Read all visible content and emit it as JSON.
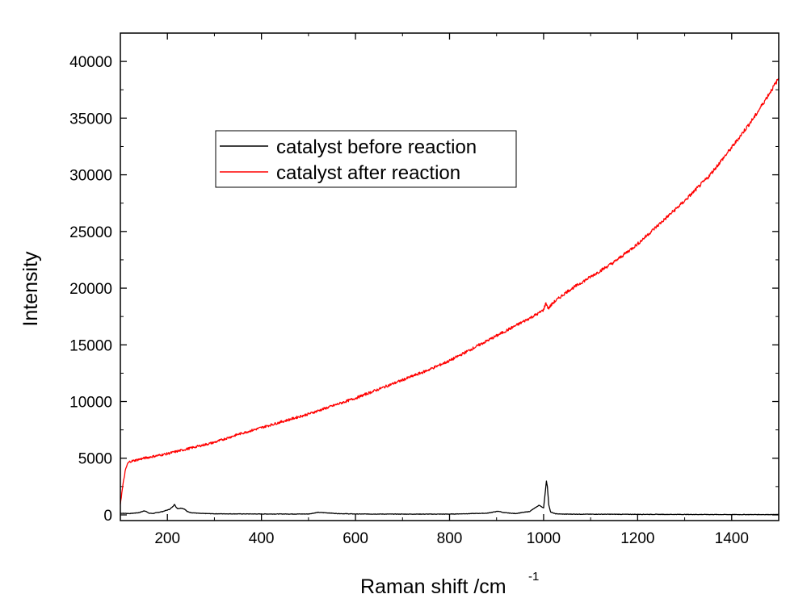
{
  "chart_data": {
    "type": "line",
    "xlabel": "Raman shift /cm",
    "xlabel_sup": "-1",
    "ylabel": "Intensity",
    "xlim": [
      100,
      1500
    ],
    "ylim": [
      -500,
      42500
    ],
    "x_ticks": [
      200,
      400,
      600,
      800,
      1000,
      1200,
      1400
    ],
    "x_tick_labels": [
      "200",
      "400",
      "600",
      "800",
      "1000",
      "1200",
      "1400"
    ],
    "y_ticks": [
      0,
      5000,
      10000,
      15000,
      20000,
      25000,
      30000,
      35000,
      40000
    ],
    "y_tick_labels": [
      "0",
      "5000",
      "10000",
      "15000",
      "20000",
      "25000",
      "30000",
      "35000",
      "40000"
    ],
    "grid": false,
    "legend_position": "upper-left",
    "colors": {
      "before": "#000000",
      "after": "#ff0000"
    },
    "series": [
      {
        "name": "catalyst before reaction",
        "color": "#000000",
        "x": [
          100,
          120,
          140,
          150,
          155,
          160,
          170,
          190,
          205,
          212,
          215,
          218,
          222,
          230,
          237,
          242,
          250,
          270,
          300,
          400,
          500,
          520,
          540,
          560,
          600,
          700,
          800,
          880,
          900,
          905,
          915,
          940,
          970,
          985,
          990,
          995,
          1000,
          1003,
          1006,
          1008,
          1011,
          1015,
          1025,
          1040,
          1100,
          1200,
          1300,
          1400,
          1500
        ],
        "y": [
          150,
          120,
          200,
          350,
          320,
          150,
          130,
          300,
          500,
          750,
          950,
          700,
          550,
          600,
          500,
          300,
          200,
          130,
          100,
          80,
          80,
          220,
          180,
          120,
          80,
          70,
          70,
          150,
          300,
          320,
          200,
          120,
          300,
          700,
          850,
          750,
          600,
          1800,
          3000,
          2500,
          900,
          250,
          100,
          70,
          60,
          50,
          40,
          30,
          30
        ]
      },
      {
        "name": "catalyst after reaction",
        "color": "#ff0000",
        "x": [
          100,
          105,
          110,
          115,
          120,
          130,
          150,
          200,
          250,
          300,
          350,
          400,
          450,
          500,
          550,
          600,
          650,
          700,
          750,
          800,
          850,
          900,
          950,
          990,
          1000,
          1005,
          1010,
          1020,
          1050,
          1100,
          1150,
          1200,
          1250,
          1300,
          1350,
          1400,
          1450,
          1500
        ],
        "y": [
          1000,
          2500,
          3800,
          4500,
          4700,
          4800,
          5000,
          5400,
          5900,
          6400,
          7100,
          7700,
          8300,
          8900,
          9600,
          10300,
          11100,
          11900,
          12700,
          13600,
          14700,
          15800,
          16900,
          17800,
          18100,
          18700,
          18200,
          18700,
          19700,
          21000,
          22300,
          23900,
          25800,
          27700,
          29800,
          32400,
          35200,
          38500
        ]
      }
    ]
  }
}
